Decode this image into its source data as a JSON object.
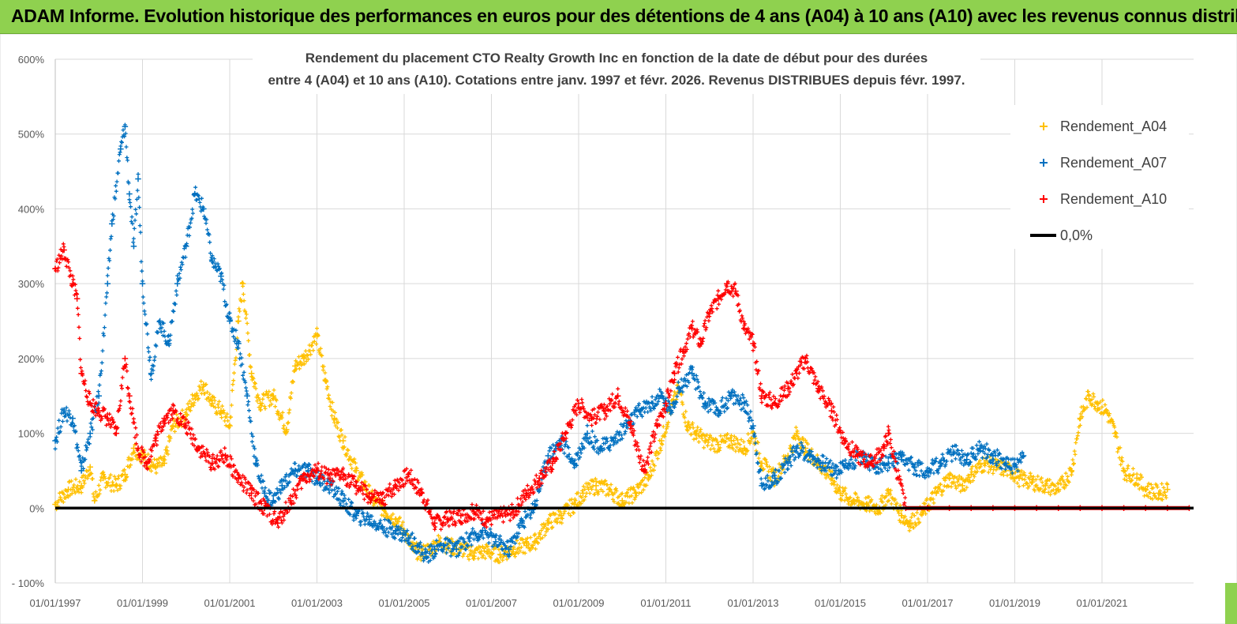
{
  "banner": {
    "text": "ADAM Informe. Evolution historique des performances en euros pour des détentions de 4 ans (A04) à 10 ans (A10) avec les revenus connus distribués"
  },
  "chart_data": {
    "type": "scatter",
    "title": [
      "Rendement du placement CTO Realty Growth Inc en fonction de la date de début pour des durées",
      "entre 4 (A04) et 10 ans (A10). Cotations entre janv. 1997 et févr. 2026. Revenus DISTRIBUES depuis févr. 1997."
    ],
    "xlabel": "",
    "ylabel": "",
    "xlim": [
      1997.0,
      2023.1
    ],
    "ylim": [
      -100,
      600
    ],
    "y_ticks": [
      -100,
      0,
      100,
      200,
      300,
      400,
      500,
      600
    ],
    "y_tick_labels": [
      "- 100%",
      "0%",
      "100%",
      "200%",
      "300%",
      "400%",
      "500%",
      "600%"
    ],
    "x_ticks": [
      1997,
      1999,
      2001,
      2003,
      2005,
      2007,
      2009,
      2011,
      2013,
      2015,
      2017,
      2019,
      2021
    ],
    "x_tick_labels": [
      "01/01/1997",
      "01/01/1999",
      "01/01/2001",
      "01/01/2003",
      "01/01/2005",
      "01/01/2007",
      "01/01/2009",
      "01/01/2011",
      "01/01/2013",
      "01/01/2015",
      "01/01/2017",
      "01/01/2019",
      "01/01/2021"
    ],
    "grid": true,
    "legend_position": "top-right",
    "series": [
      {
        "name": "Rendement_A04",
        "color": "#ffc000",
        "x": [
          1997.0,
          1997.3,
          1997.6,
          1997.8,
          1997.9,
          1998.1,
          1998.4,
          1998.6,
          1998.8,
          1999.0,
          1999.3,
          1999.5,
          1999.7,
          2000.0,
          2000.2,
          2000.4,
          2000.6,
          2000.8,
          2001.0,
          2001.2,
          2001.3,
          2001.5,
          2001.7,
          2002.0,
          2002.3,
          2002.5,
          2002.7,
          2003.0,
          2003.2,
          2003.4,
          2003.6,
          2003.9,
          2004.1,
          2004.3,
          2004.5,
          2004.8,
          2005.0,
          2005.2,
          2005.4,
          2005.6,
          2005.8,
          2006.0,
          2006.3,
          2006.6,
          2006.9,
          2007.2,
          2007.5,
          2007.8,
          2008.0,
          2008.3,
          2008.6,
          2008.9,
          2009.1,
          2009.4,
          2009.7,
          2010.0,
          2010.3,
          2010.6,
          2010.9,
          2011.1,
          2011.3,
          2011.5,
          2011.7,
          2011.9,
          2012.2,
          2012.5,
          2012.8,
          2013.0,
          2013.2,
          2013.5,
          2013.8,
          2014.0,
          2014.2,
          2014.5,
          2014.8,
          2015.0,
          2015.3,
          2015.6,
          2015.9,
          2016.1,
          2016.4,
          2016.6,
          2016.9,
          2017.2,
          2017.5,
          2017.8,
          2018.0,
          2018.3,
          2018.6,
          2018.9,
          2019.1,
          2019.4,
          2019.7,
          2020.0,
          2020.3,
          2020.5,
          2020.7,
          2020.9,
          2021.1,
          2021.3,
          2021.5,
          2021.8,
          2022.0,
          2022.3,
          2022.5
        ],
        "values": [
          5,
          25,
          30,
          55,
          10,
          40,
          30,
          45,
          80,
          70,
          55,
          60,
          110,
          125,
          150,
          165,
          140,
          130,
          110,
          250,
          300,
          180,
          140,
          150,
          105,
          190,
          200,
          230,
          170,
          120,
          90,
          50,
          30,
          10,
          0,
          -15,
          -30,
          -55,
          -60,
          -55,
          -45,
          -50,
          -55,
          -60,
          -58,
          -62,
          -55,
          -50,
          -45,
          -20,
          -10,
          5,
          20,
          30,
          25,
          10,
          20,
          40,
          90,
          130,
          160,
          110,
          100,
          90,
          85,
          90,
          80,
          100,
          60,
          40,
          70,
          100,
          80,
          60,
          40,
          20,
          10,
          5,
          0,
          20,
          -10,
          -20,
          -5,
          20,
          40,
          30,
          45,
          60,
          55,
          50,
          40,
          35,
          30,
          25,
          50,
          120,
          150,
          140,
          130,
          100,
          50,
          40,
          25,
          20,
          25
        ]
      },
      {
        "name": "Rendement_A07",
        "color": "#0070c0",
        "x": [
          1997.0,
          1997.2,
          1997.4,
          1997.6,
          1997.8,
          1998.0,
          1998.2,
          1998.3,
          1998.5,
          1998.6,
          1998.7,
          1998.8,
          1998.9,
          1999.0,
          1999.2,
          1999.4,
          1999.6,
          1999.8,
          2000.0,
          2000.2,
          2000.4,
          2000.6,
          2000.8,
          2001.0,
          2001.2,
          2001.4,
          2001.6,
          2001.8,
          2002.0,
          2002.2,
          2002.5,
          2002.8,
          2003.0,
          2003.3,
          2003.6,
          2003.9,
          2004.2,
          2004.5,
          2004.8,
          2005.1,
          2005.3,
          2005.5,
          2005.7,
          2005.9,
          2006.2,
          2006.5,
          2006.8,
          2007.1,
          2007.4,
          2007.7,
          2008.0,
          2008.3,
          2008.6,
          2008.9,
          2009.2,
          2009.5,
          2009.8,
          2010.1,
          2010.4,
          2010.7,
          2010.9,
          2011.1,
          2011.3,
          2011.6,
          2011.9,
          2012.2,
          2012.5,
          2012.8,
          2013.0,
          2013.2,
          2013.5,
          2013.8,
          2014.0,
          2014.3,
          2014.6,
          2014.9,
          2015.2,
          2015.5,
          2015.8,
          2016.1,
          2016.4,
          2016.7,
          2017.0,
          2017.3,
          2017.6,
          2017.9,
          2018.2,
          2018.5,
          2018.8,
          2019.0,
          2019.2
        ],
        "values": [
          90,
          130,
          120,
          50,
          100,
          150,
          300,
          380,
          480,
          510,
          420,
          350,
          440,
          300,
          180,
          250,
          220,
          300,
          350,
          420,
          400,
          330,
          310,
          250,
          220,
          150,
          60,
          20,
          10,
          30,
          50,
          50,
          40,
          30,
          10,
          -10,
          -15,
          -25,
          -30,
          -40,
          -50,
          -65,
          -55,
          -50,
          -55,
          -40,
          -30,
          -45,
          -55,
          -20,
          5,
          70,
          90,
          60,
          100,
          80,
          90,
          110,
          130,
          140,
          150,
          130,
          160,
          180,
          140,
          130,
          150,
          140,
          110,
          30,
          40,
          60,
          80,
          70,
          60,
          50,
          60,
          70,
          55,
          60,
          65,
          55,
          50,
          60,
          75,
          65,
          80,
          70,
          60,
          55,
          70
        ]
      },
      {
        "name": "Rendement_A10",
        "color": "#ff0000",
        "x": [
          1997.0,
          1997.2,
          1997.4,
          1997.5,
          1997.6,
          1997.8,
          1998.0,
          1998.2,
          1998.4,
          1998.6,
          1998.7,
          1998.9,
          1999.1,
          1999.3,
          1999.5,
          1999.7,
          2000.0,
          2000.3,
          2000.6,
          2000.9,
          2001.2,
          2001.5,
          2001.8,
          2002.1,
          2002.4,
          2002.7,
          2003.0,
          2003.3,
          2003.6,
          2003.9,
          2004.2,
          2004.5,
          2004.8,
          2005.1,
          2005.4,
          2005.7,
          2006.0,
          2006.3,
          2006.6,
          2006.9,
          2007.2,
          2007.5,
          2007.8,
          2008.1,
          2008.4,
          2008.7,
          2009.0,
          2009.3,
          2009.6,
          2009.9,
          2010.2,
          2010.5,
          2010.8,
          2011.0,
          2011.2,
          2011.4,
          2011.6,
          2011.8,
          2012.0,
          2012.2,
          2012.4,
          2012.6,
          2012.8,
          2013.0,
          2013.2,
          2013.5,
          2013.8,
          2014.0,
          2014.2,
          2014.5,
          2014.8,
          2015.1,
          2015.4,
          2015.7,
          2016.0,
          2016.1,
          2016.5,
          2017.0,
          2017.5,
          2018.0,
          2018.5,
          2019.0,
          2019.5,
          2020.0,
          2020.5,
          2021.0,
          2021.5,
          2022.0,
          2022.5,
          2023.0
        ],
        "values": [
          320,
          345,
          300,
          280,
          180,
          140,
          130,
          120,
          100,
          200,
          150,
          80,
          60,
          90,
          120,
          130,
          110,
          80,
          60,
          70,
          40,
          20,
          0,
          -20,
          10,
          40,
          50,
          40,
          45,
          30,
          15,
          10,
          30,
          45,
          20,
          -20,
          -15,
          -10,
          -5,
          -15,
          -10,
          -5,
          20,
          40,
          60,
          100,
          140,
          120,
          130,
          150,
          110,
          50,
          110,
          140,
          180,
          210,
          240,
          220,
          260,
          280,
          300,
          290,
          240,
          220,
          150,
          140,
          160,
          180,
          200,
          160,
          130,
          90,
          70,
          60,
          80,
          100,
          0,
          0,
          0,
          0,
          0,
          0,
          0,
          0,
          0,
          0,
          0,
          0,
          0,
          0
        ]
      },
      {
        "name": "0,0%",
        "color": "#000000",
        "x": [
          1997.0,
          2023.1
        ],
        "values": [
          0,
          0
        ]
      }
    ]
  }
}
